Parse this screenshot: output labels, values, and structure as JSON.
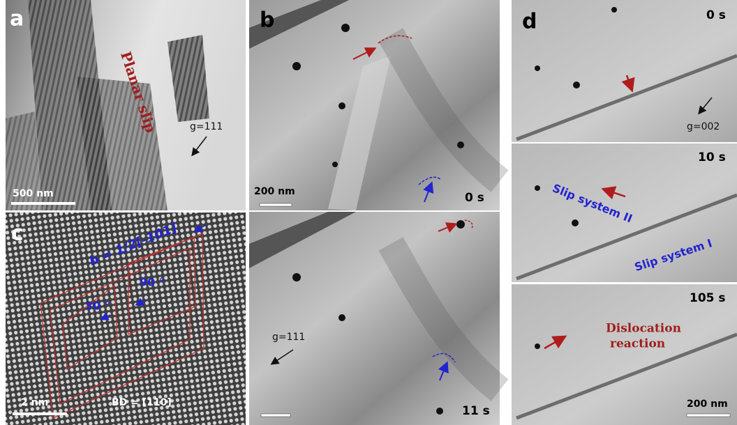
{
  "panels": {
    "a": {
      "label": "a",
      "annotation": "Planar slip",
      "g_vector": "g=111",
      "scale_bar": "500 nm"
    },
    "b": {
      "label": "b",
      "scale_bar": "200 nm",
      "time_top": "0 s",
      "g_vector": "g=111",
      "time_bottom": "11 s"
    },
    "c": {
      "label": "c",
      "burgers": "b = 1/2[-101]",
      "angle_large": "90 °",
      "angle_small": "30 °",
      "scale_bar": "2 nm",
      "beam_direction": "BD = [110]"
    },
    "d": {
      "label": "d",
      "time_1": "0 s",
      "g_vector": "g=002",
      "time_2": "10 s",
      "slip_2": "Slip system II",
      "slip_1": "Slip system I",
      "time_3": "105 s",
      "reaction": [
        "Dislocation",
        "reaction"
      ],
      "scale_bar": "200 nm"
    }
  }
}
